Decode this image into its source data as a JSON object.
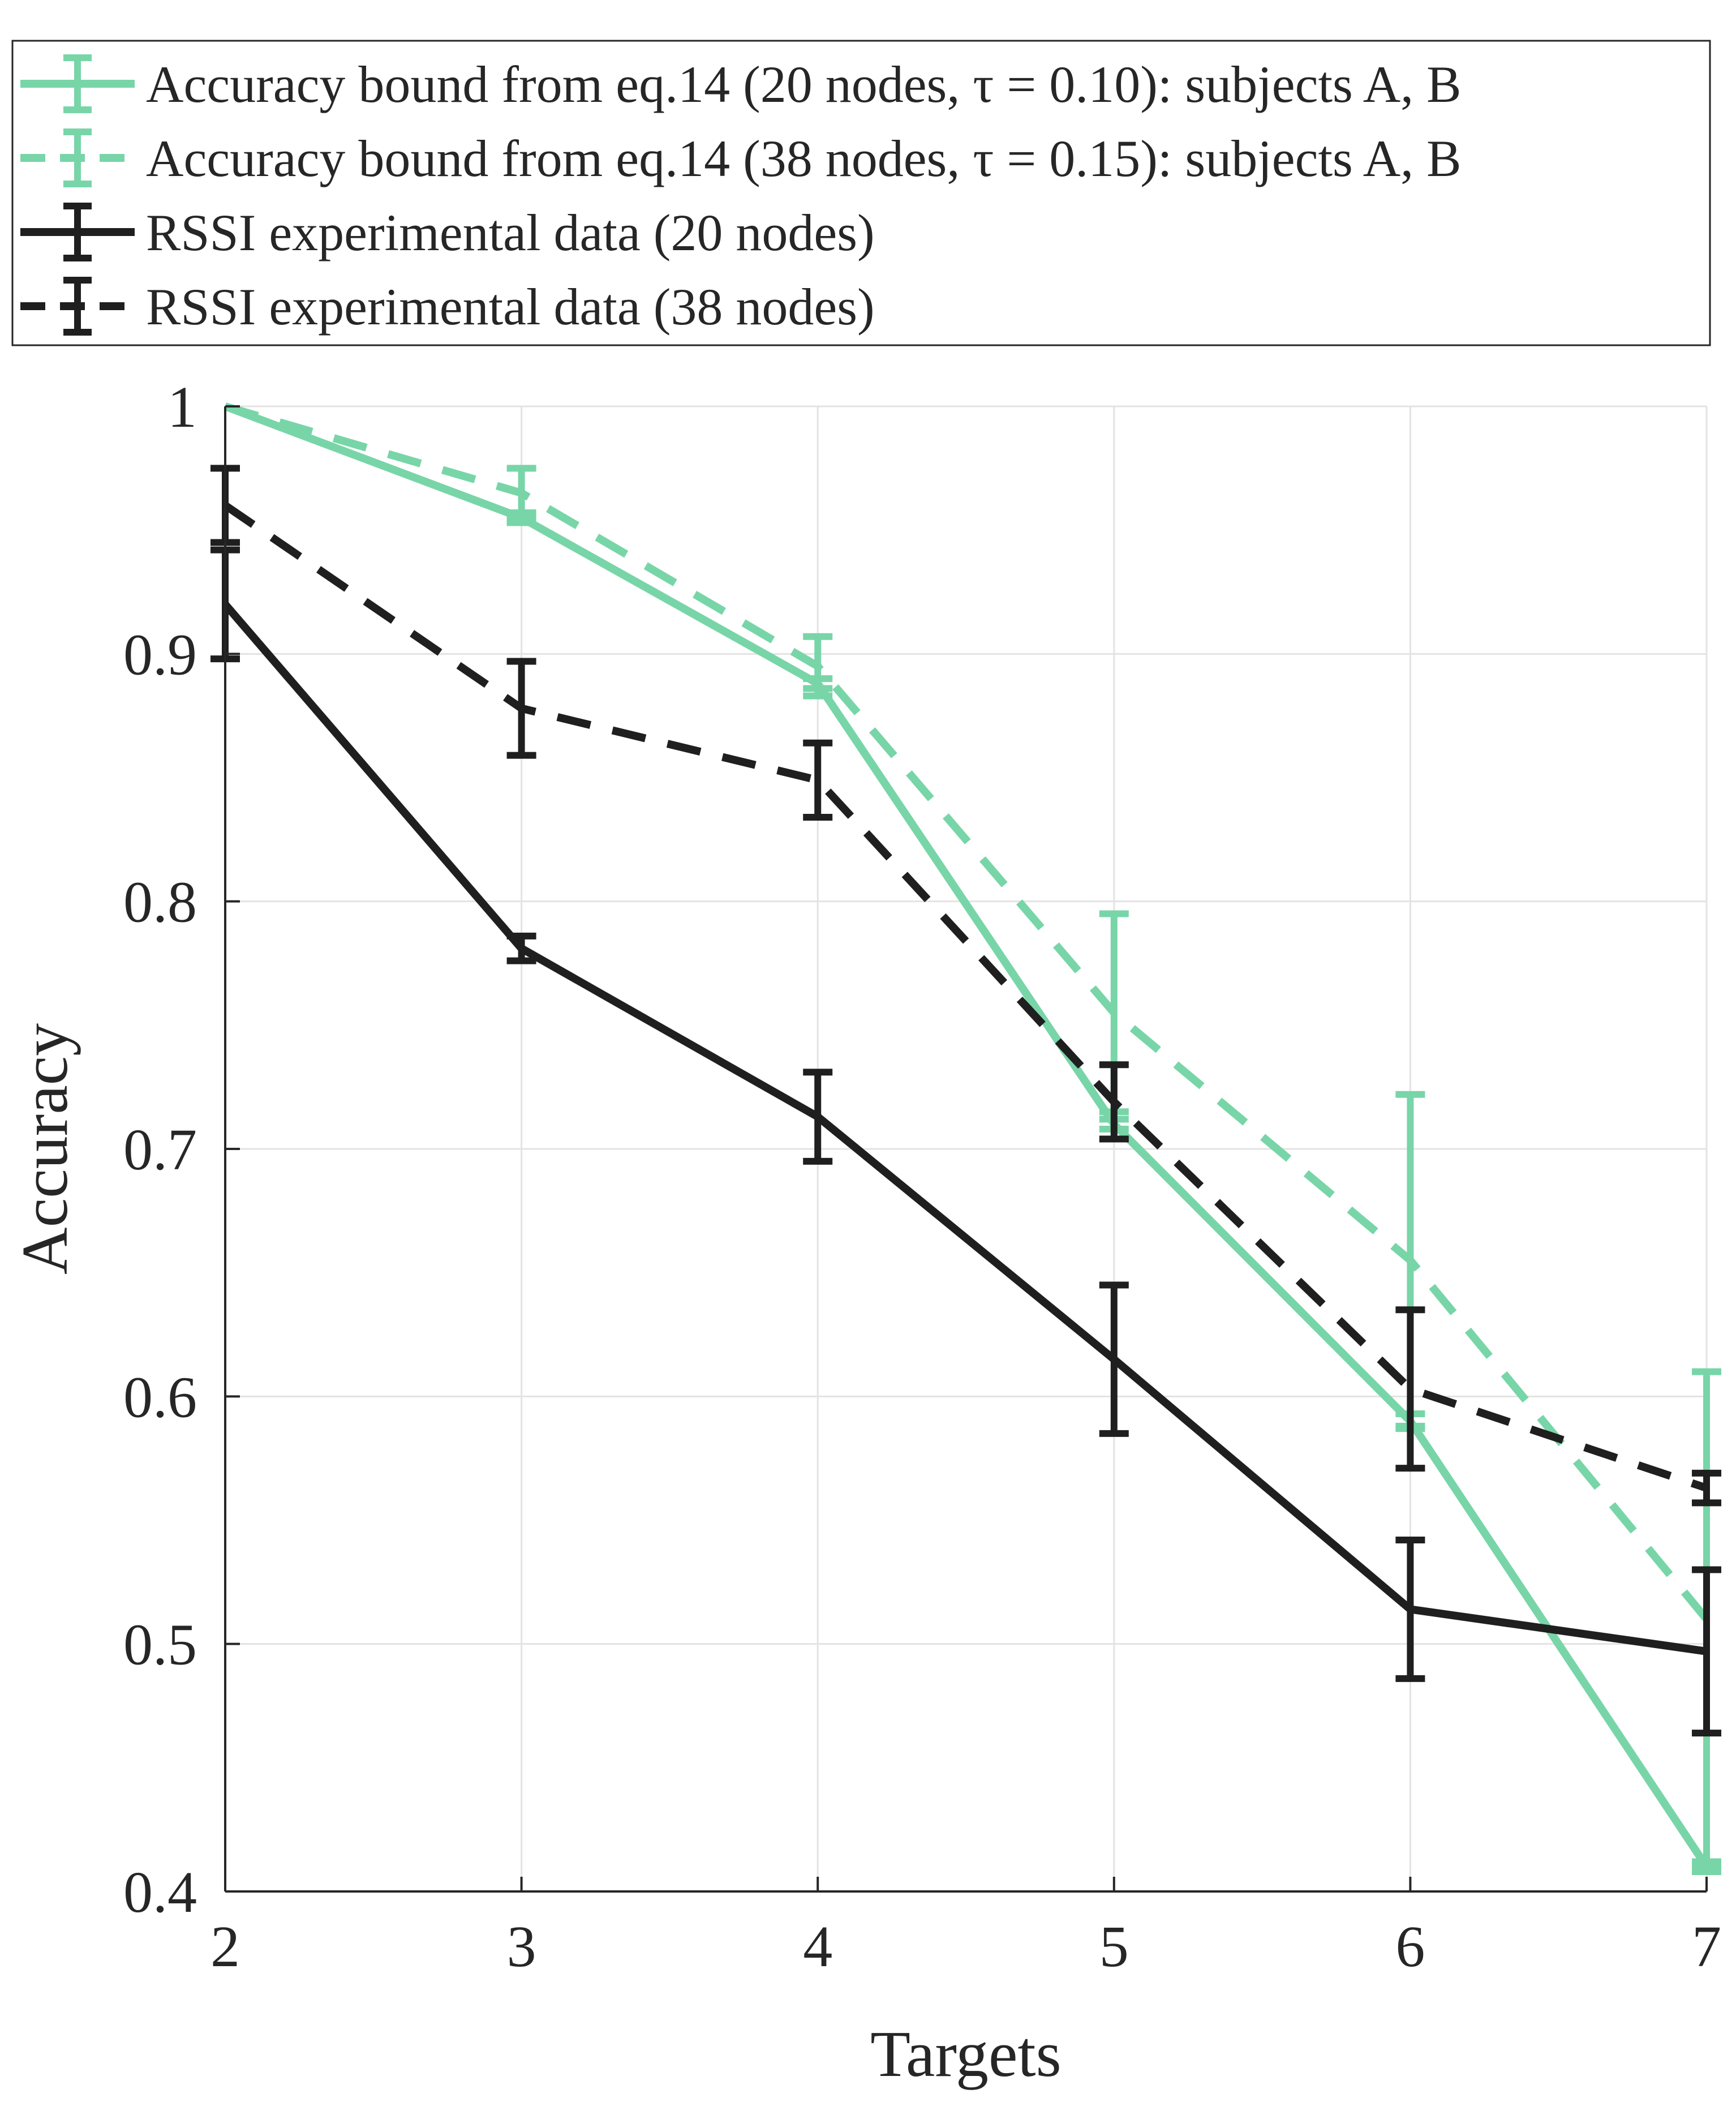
{
  "chart_data": {
    "type": "line",
    "title": "",
    "xlabel": "Targets",
    "ylabel": "Accuracy",
    "x": [
      2,
      3,
      4,
      5,
      6,
      7
    ],
    "xlim": [
      2,
      7
    ],
    "ylim": [
      0.4,
      1.0
    ],
    "xticks": [
      "2",
      "3",
      "4",
      "5",
      "6",
      "7"
    ],
    "yticks": [
      "0.4",
      "0.5",
      "0.6",
      "0.7",
      "0.8",
      "0.9",
      "1"
    ],
    "grid": true,
    "legend_position": "top",
    "series": [
      {
        "name": "Accuracy bound from eq.14 (20 nodes, τ = 0.10): subjects A, B",
        "style": "solid",
        "color": "#78d5a8",
        "values": [
          1.0,
          0.955,
          0.888,
          0.71,
          0.59,
          0.41
        ],
        "err_low": [
          0.0,
          0.002,
          0.002,
          0.002,
          0.003,
          0.002
        ],
        "err_high": [
          0.0,
          0.002,
          0.002,
          0.002,
          0.003,
          0.002
        ]
      },
      {
        "name": "Accuracy bound from eq.14 (38 nodes, τ = 0.15): subjects A, B",
        "style": "dashed",
        "color": "#78d5a8",
        "values": [
          1.0,
          0.965,
          0.895,
          0.755,
          0.655,
          0.51
        ],
        "err_low": [
          0.0,
          0.01,
          0.012,
          0.04,
          0.067,
          0.1
        ],
        "err_high": [
          0.0,
          0.01,
          0.012,
          0.04,
          0.067,
          0.1
        ]
      },
      {
        "name": "RSSI experimental data (20 nodes)",
        "style": "solid",
        "color": "#1f1f1f",
        "values": [
          0.92,
          0.781,
          0.713,
          0.615,
          0.514,
          0.497
        ],
        "err_low": [
          0.022,
          0.005,
          0.018,
          0.03,
          0.028,
          0.033
        ],
        "err_high": [
          0.022,
          0.005,
          0.018,
          0.03,
          0.028,
          0.033
        ]
      },
      {
        "name": "RSSI experimental data (38 nodes)",
        "style": "dashed",
        "color": "#1f1f1f",
        "values": [
          0.96,
          0.878,
          0.849,
          0.719,
          0.603,
          0.563
        ],
        "err_low": [
          0.015,
          0.019,
          0.015,
          0.015,
          0.032,
          0.006
        ],
        "err_high": [
          0.015,
          0.019,
          0.015,
          0.015,
          0.032,
          0.006
        ]
      }
    ]
  }
}
